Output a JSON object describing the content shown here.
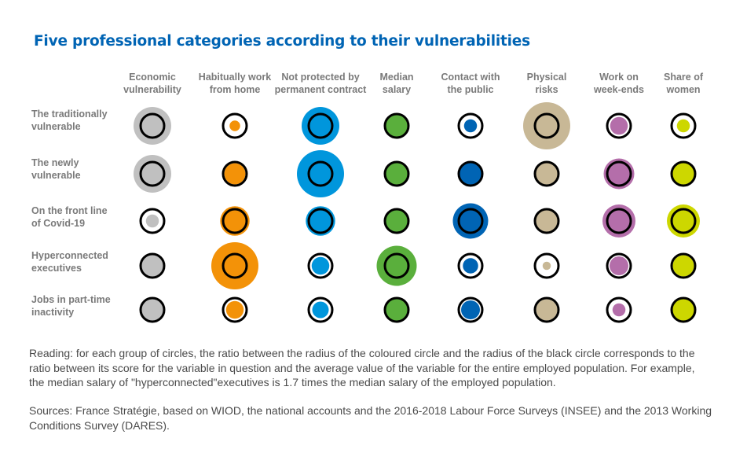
{
  "colors": {
    "title": "#0064b4",
    "ring": "#000000",
    "columns": [
      "#c0c0c0",
      "#f39208",
      "#0096dc",
      "#5aaf3c",
      "#0064b4",
      "#c8b896",
      "#b46eaa",
      "#cdd700"
    ]
  },
  "chart_data": {
    "type": "proportional-circle matrix",
    "title": "Five professional categories according to their vulnerabilities",
    "columns": [
      "Economic\nvulnerability",
      "Habitually work\nfrom home",
      "Not protected by\npermanent contract",
      "Median\nsalary",
      "Contact with\nthe public",
      "Physical\nrisks",
      "Work on\nweek-ends",
      "Share of\nwomen"
    ],
    "rows": [
      "The traditionally\nvulnerable",
      "The newly\nvulnerable",
      "On the front line\nof Covid-19",
      "Hyperconnected\nexecutives",
      "Jobs in part-time\ninactivity"
    ],
    "ratio_to_average": [
      [
        1.6,
        0.45,
        1.6,
        1.0,
        0.55,
        2.0,
        0.75,
        0.55
      ],
      [
        1.6,
        0.9,
        2.0,
        1.0,
        1.0,
        1.0,
        1.3,
        0.95
      ],
      [
        0.55,
        1.25,
        1.25,
        1.0,
        1.5,
        1.0,
        1.4,
        1.4
      ],
      [
        0.95,
        2.0,
        0.75,
        1.7,
        0.65,
        0.35,
        0.8,
        0.9
      ],
      [
        1.0,
        0.75,
        0.7,
        1.0,
        0.8,
        0.9,
        0.55,
        1.05
      ]
    ]
  },
  "notes": {
    "reading": "Reading: for each group of circles, the ratio between the radius of the coloured circle and the radius of the black circle corresponds to the ratio between its score for the variable in question and the average value of the variable for the entire employed population. For example, the median salary of \"hyperconnected\"executives is 1.7 times the median salary of the employed population.",
    "sources": "Sources: France Stratégie, based on WIOD, the national accounts and the 2016-2018 Labour Force Surveys (INSEE) and the 2013 Working Conditions Survey (DARES)."
  }
}
